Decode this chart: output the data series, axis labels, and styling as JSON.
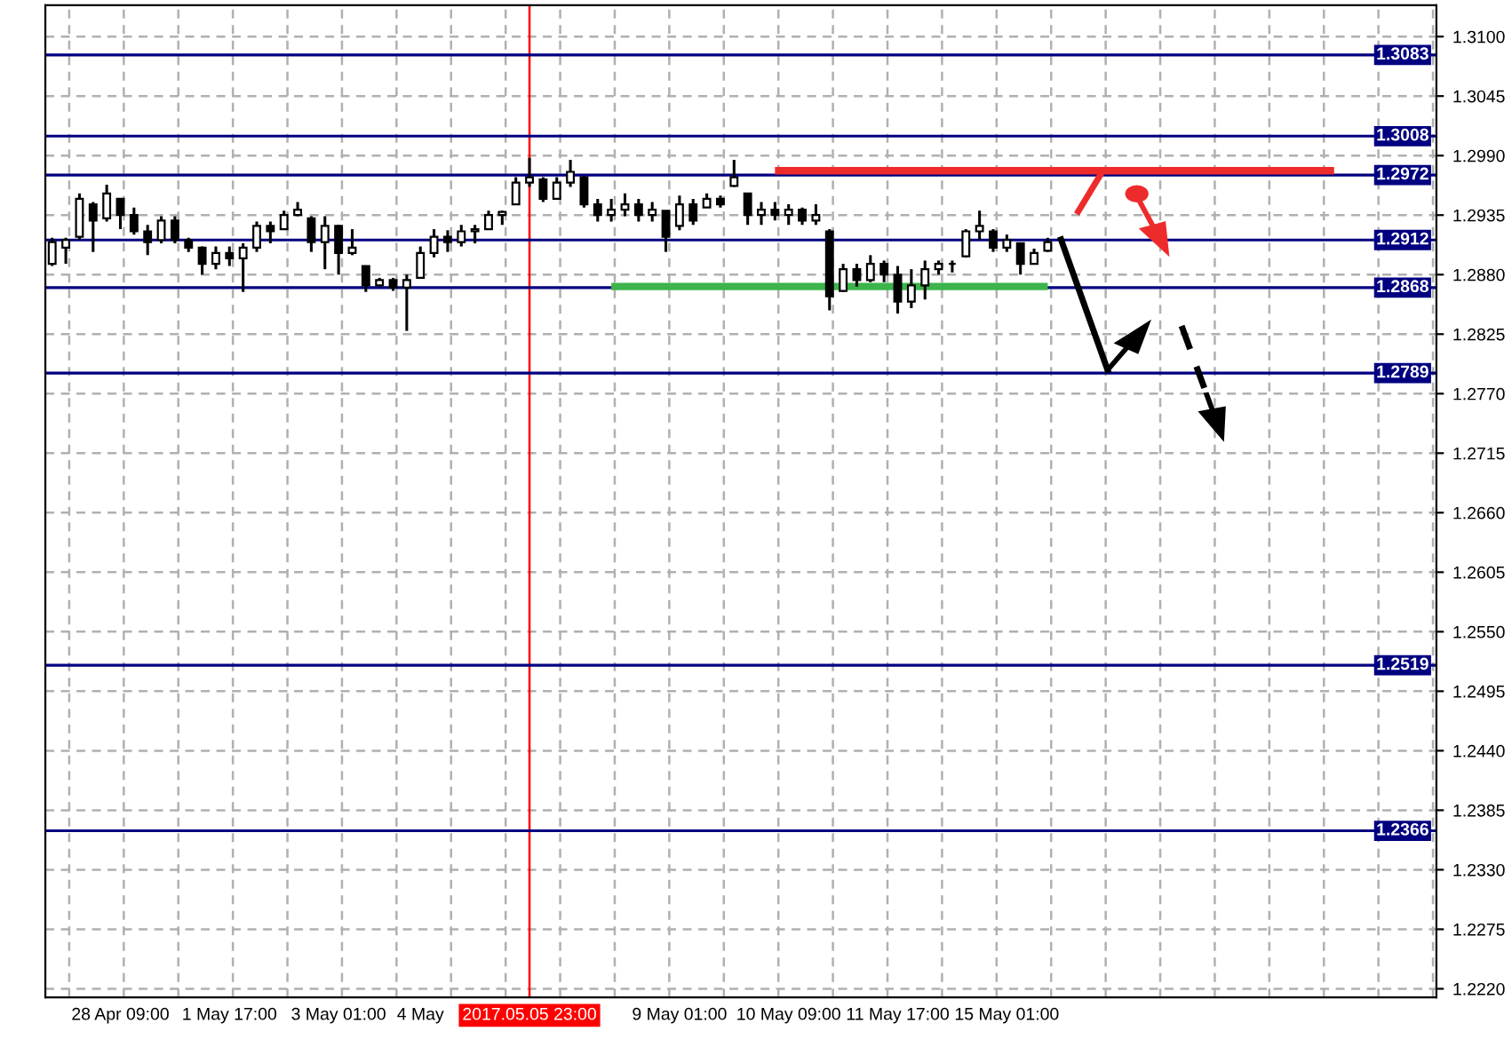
{
  "chart_data": {
    "type": "candlestick",
    "categories": [
      null,
      null,
      null,
      null,
      null,
      "28 Apr 09:00",
      null,
      null,
      null,
      null,
      null,
      null,
      null,
      "1 May 17:00",
      null,
      null,
      null,
      null,
      null,
      null,
      null,
      "3 May 01:00",
      null,
      null,
      null,
      null,
      null,
      "4 May",
      null,
      null,
      null,
      null,
      null,
      null,
      null,
      "2017.05.05 23:00",
      null,
      null,
      null,
      null,
      null,
      null,
      null,
      null,
      null,
      null,
      "9 May 01:00",
      null,
      null,
      null,
      null,
      null,
      null,
      null,
      "10 May 09:00",
      null,
      null,
      null,
      null,
      null,
      null,
      null,
      "11 May 17:00",
      null,
      null,
      null,
      null,
      null,
      null,
      null,
      "15 May 01:00",
      null,
      null,
      null,
      null,
      null,
      null,
      null,
      null,
      null,
      null,
      null,
      null,
      null,
      null,
      null,
      null,
      null,
      null,
      null,
      null,
      null,
      null,
      null,
      null,
      null,
      null,
      null,
      null,
      null,
      null,
      null
    ],
    "ohlc": [
      [
        1.289,
        1.2914,
        1.2888,
        1.291
      ],
      [
        1.2905,
        1.2914,
        1.289,
        1.2912
      ],
      [
        1.2915,
        1.2955,
        1.2912,
        1.295
      ],
      [
        1.2945,
        1.2947,
        1.2901,
        1.293
      ],
      [
        1.2932,
        1.2963,
        1.2929,
        1.2955
      ],
      [
        1.295,
        1.295,
        1.2922,
        1.2935
      ],
      [
        1.2935,
        1.2942,
        1.2917,
        1.292
      ],
      [
        1.292,
        1.2926,
        1.2898,
        1.291
      ],
      [
        1.2912,
        1.2934,
        1.2909,
        1.293
      ],
      [
        1.293,
        1.2934,
        1.2909,
        1.2912
      ],
      [
        1.2912,
        1.2914,
        1.2901,
        1.2905
      ],
      [
        1.2905,
        1.2906,
        1.288,
        1.289
      ],
      [
        1.289,
        1.2906,
        1.2885,
        1.29
      ],
      [
        1.29,
        1.2906,
        1.2888,
        1.2895
      ],
      [
        1.2895,
        1.2909,
        1.2864,
        1.2905
      ],
      [
        1.2905,
        1.2929,
        1.2901,
        1.2925
      ],
      [
        1.2925,
        1.2929,
        1.2909,
        1.292
      ],
      [
        1.2922,
        1.2939,
        1.2922,
        1.2935
      ],
      [
        1.2935,
        1.2947,
        1.2934,
        1.294
      ],
      [
        1.2932,
        1.2934,
        1.2901,
        1.291
      ],
      [
        1.291,
        1.2934,
        1.2885,
        1.2925
      ],
      [
        1.2925,
        1.2926,
        1.288,
        1.29
      ],
      [
        1.29,
        1.2922,
        1.2898,
        1.2905
      ],
      [
        1.2888,
        1.2888,
        1.2864,
        1.287
      ],
      [
        1.287,
        1.2877,
        1.2869,
        1.2875
      ],
      [
        1.2875,
        1.2877,
        1.2865,
        1.2868
      ],
      [
        1.2868,
        1.288,
        1.2828,
        1.2875
      ],
      [
        1.2877,
        1.2906,
        1.2877,
        1.29
      ],
      [
        1.29,
        1.2922,
        1.2896,
        1.2915
      ],
      [
        1.2915,
        1.2921,
        1.2901,
        1.291
      ],
      [
        1.291,
        1.2926,
        1.2906,
        1.292
      ],
      [
        1.292,
        1.2926,
        1.2909,
        1.2922
      ],
      [
        1.2922,
        1.2939,
        1.2922,
        1.2935
      ],
      [
        1.2935,
        1.2939,
        1.2926,
        1.2938
      ],
      [
        1.2945,
        1.297,
        1.2945,
        1.2965
      ],
      [
        1.2965,
        1.2988,
        1.2961,
        1.297
      ],
      [
        1.2968,
        1.297,
        1.2947,
        1.295
      ],
      [
        1.295,
        1.297,
        1.295,
        1.2965
      ],
      [
        1.2965,
        1.2986,
        1.2961,
        1.2975
      ],
      [
        1.297,
        1.2971,
        1.2942,
        1.2945
      ],
      [
        1.2945,
        1.295,
        1.2929,
        1.2935
      ],
      [
        1.2935,
        1.295,
        1.2929,
        1.294
      ],
      [
        1.294,
        1.2955,
        1.2934,
        1.2945
      ],
      [
        1.2945,
        1.295,
        1.2929,
        1.2935
      ],
      [
        1.2935,
        1.2947,
        1.2929,
        1.294
      ],
      [
        1.2939,
        1.2939,
        1.2901,
        1.2915
      ],
      [
        1.2925,
        1.2953,
        1.2921,
        1.2945
      ],
      [
        1.2945,
        1.295,
        1.2926,
        1.293
      ],
      [
        1.2942,
        1.2955,
        1.2942,
        1.295
      ],
      [
        1.295,
        1.2953,
        1.2942,
        1.2945
      ],
      [
        1.2962,
        1.2986,
        1.2961,
        1.297
      ],
      [
        1.2955,
        1.2955,
        1.2926,
        1.2935
      ],
      [
        1.2935,
        1.2947,
        1.2926,
        1.294
      ],
      [
        1.294,
        1.2947,
        1.293,
        1.2935
      ],
      [
        1.2935,
        1.2945,
        1.2926,
        1.294
      ],
      [
        1.294,
        1.2942,
        1.2926,
        1.293
      ],
      [
        1.293,
        1.2945,
        1.2926,
        1.2935
      ],
      [
        1.292,
        1.2922,
        1.2847,
        1.286
      ],
      [
        1.2865,
        1.289,
        1.2864,
        1.2885
      ],
      [
        1.2885,
        1.289,
        1.2869,
        1.2875
      ],
      [
        1.2875,
        1.2898,
        1.2873,
        1.289
      ],
      [
        1.289,
        1.2893,
        1.2873,
        1.288
      ],
      [
        1.288,
        1.2888,
        1.2844,
        1.2855
      ],
      [
        1.2855,
        1.2885,
        1.2849,
        1.287
      ],
      [
        1.287,
        1.2893,
        1.2857,
        1.2885
      ],
      [
        1.2885,
        1.2893,
        1.288,
        1.289
      ],
      [
        1.289,
        1.2893,
        1.2882,
        1.289
      ],
      [
        1.2897,
        1.2922,
        1.2896,
        1.292
      ],
      [
        1.292,
        1.2939,
        1.2912,
        1.2925
      ],
      [
        1.292,
        1.2922,
        1.2901,
        1.2905
      ],
      [
        1.2905,
        1.2917,
        1.2901,
        1.2912
      ],
      [
        1.2909,
        1.2909,
        1.288,
        1.289
      ],
      [
        1.289,
        1.2904,
        1.289,
        1.29
      ],
      [
        1.2902,
        1.2914,
        1.2901,
        1.291
      ],
      null,
      null,
      null,
      null,
      null,
      null,
      null,
      null,
      null,
      null,
      null,
      null,
      null,
      null,
      null,
      null,
      null,
      null,
      null,
      null,
      null,
      null,
      null,
      null,
      null,
      null,
      null,
      null
    ],
    "color": "#000000",
    "series": [
      {
        "type": "line",
        "color": "#ee2b2b",
        "values": [
          null,
          null,
          null,
          null,
          null,
          null,
          null,
          null,
          null,
          null,
          null,
          null,
          null,
          null,
          null,
          null,
          null,
          null,
          null,
          null,
          null,
          null,
          null,
          null,
          null,
          null,
          null,
          null,
          null,
          null,
          null,
          null,
          null,
          null,
          null,
          null,
          null,
          null,
          null,
          null,
          null,
          null,
          null,
          null,
          null,
          null,
          null,
          null,
          null,
          null,
          null,
          null,
          null,
          1.2976,
          1.2976,
          1.2976,
          1.2976,
          1.2976,
          1.2976,
          1.2976,
          1.2976,
          1.2976,
          1.2976,
          1.2976,
          1.2976,
          1.2976,
          1.2976,
          1.2976,
          1.2976,
          1.2976,
          1.2976,
          1.2976,
          1.2976,
          1.2976,
          1.2976,
          1.2976,
          1.2976,
          1.2976,
          1.2976,
          1.2976,
          1.2976,
          1.2976,
          1.2976,
          1.2976,
          1.2976,
          1.2976,
          1.2976,
          1.2976,
          1.2976,
          1.2976,
          1.2976,
          1.2976,
          1.2976,
          1.2976,
          1.2976,
          null,
          null,
          null,
          null,
          null,
          null,
          null
        ]
      },
      {
        "type": "line",
        "color": "#3cb44b",
        "values": [
          null,
          null,
          null,
          null,
          null,
          null,
          null,
          null,
          null,
          null,
          null,
          null,
          null,
          null,
          null,
          null,
          null,
          null,
          null,
          null,
          null,
          null,
          null,
          null,
          null,
          null,
          null,
          null,
          null,
          null,
          null,
          null,
          null,
          null,
          null,
          null,
          null,
          null,
          null,
          null,
          null,
          1.2869,
          1.2869,
          1.2869,
          1.2869,
          1.2869,
          1.2869,
          1.2869,
          1.2869,
          1.2869,
          1.2869,
          1.2869,
          1.2869,
          1.2869,
          1.2869,
          1.2869,
          1.2869,
          1.2869,
          1.2869,
          1.2869,
          1.2869,
          1.2869,
          1.2869,
          1.2869,
          1.2869,
          1.2869,
          1.2869,
          1.2869,
          1.2869,
          1.2869,
          1.2869,
          1.2869,
          1.2869,
          1.2869,
          null,
          null,
          null,
          null,
          null,
          null,
          null,
          null,
          null,
          null,
          null,
          null,
          null,
          null,
          null,
          null,
          null,
          null,
          null,
          null,
          null,
          null,
          null,
          null,
          null,
          null,
          null,
          null
        ]
      }
    ],
    "ylim": [
      1.2212,
      1.3129
    ],
    "yticks": [
      {
        "value": 1.222,
        "label": "1.2220"
      },
      1.2275,
      {
        "value": 1.233,
        "label": "1.2330"
      },
      1.2385,
      {
        "value": 1.244,
        "label": "1.2440"
      },
      1.2495,
      {
        "value": 1.255,
        "label": "1.2550"
      },
      1.2605,
      {
        "value": 1.266,
        "label": "1.2660"
      },
      1.2715,
      {
        "value": 1.277,
        "label": "1.2770"
      },
      1.2825,
      {
        "value": 1.288,
        "label": "1.2880"
      },
      1.2935,
      {
        "value": 1.299,
        "label": "1.2990"
      },
      1.3045,
      {
        "value": 1.31,
        "label": "1.3100"
      }
    ],
    "ref_lines": [
      {
        "axis": "x",
        "value": "2017.05.05 23:00",
        "color": "#ff0000"
      },
      {
        "axis": "y",
        "value": 1.3083,
        "label": "1.3083",
        "color": "#000080"
      },
      {
        "axis": "y",
        "value": 1.3008,
        "label": "1.3008",
        "color": "#000080"
      },
      {
        "axis": "y",
        "value": 1.2972,
        "label": "1.2972",
        "color": "#000080"
      },
      {
        "axis": "y",
        "value": 1.2912,
        "label": "1.2912",
        "color": "#000080"
      },
      {
        "axis": "y",
        "value": 1.2868,
        "label": "1.2868",
        "color": "#000080"
      },
      {
        "axis": "y",
        "value": 1.2789,
        "label": "1.2789",
        "color": "#000080"
      },
      {
        "axis": "y",
        "value": 1.2519,
        "label": "1.2519",
        "color": "#000080"
      },
      {
        "axis": "y",
        "value": 1.2366,
        "label": "1.2366",
        "color": "#000080"
      }
    ],
    "grid": true
  }
}
